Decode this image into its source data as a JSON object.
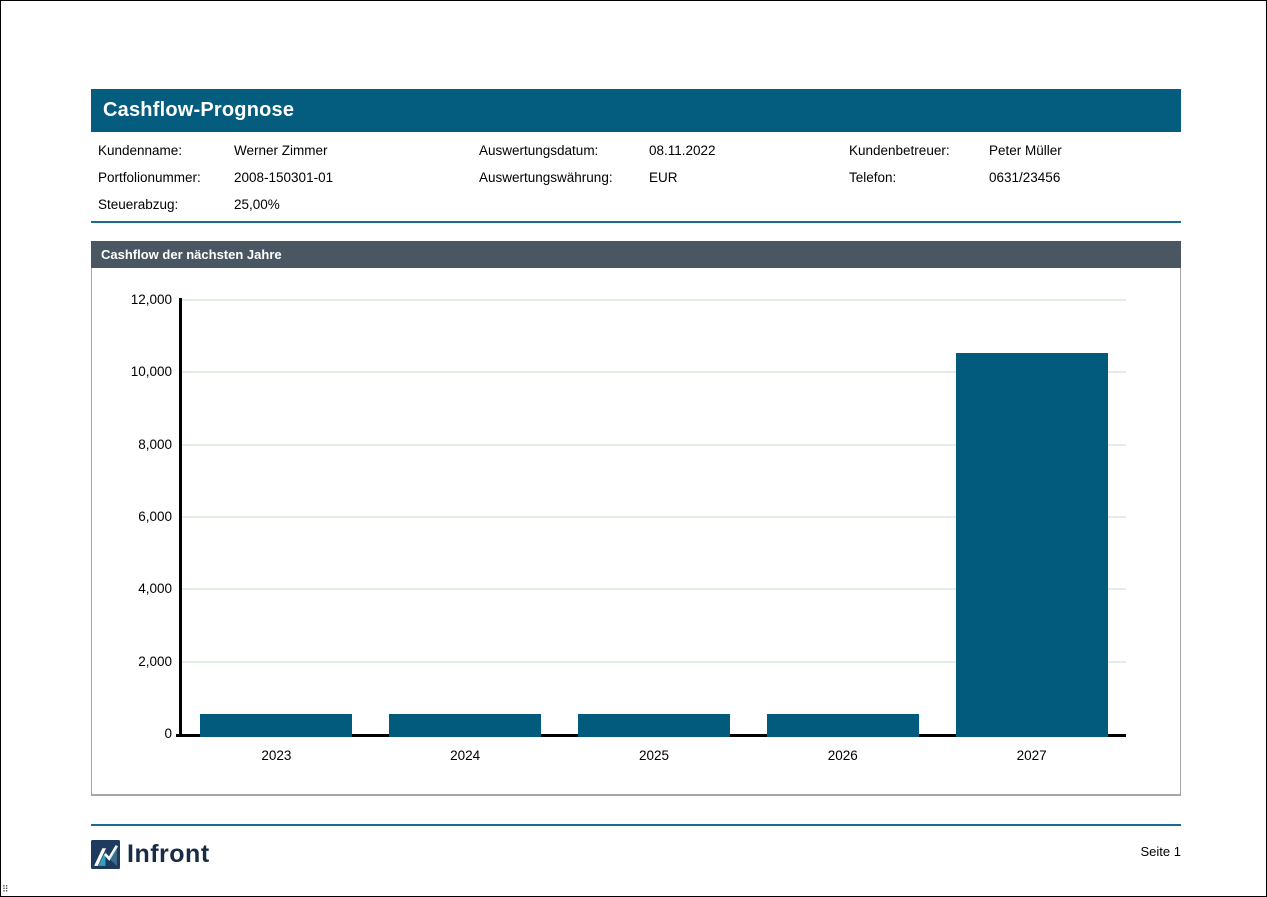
{
  "page": {
    "title": "Cashflow-Prognose",
    "page_number": "Seite 1",
    "brand": "Infront"
  },
  "info": {
    "fields": [
      {
        "label": "Kundenname:",
        "value": "Werner Zimmer"
      },
      {
        "label": "Auswertungsdatum:",
        "value": "08.11.2022"
      },
      {
        "label": "Kundenbetreuer:",
        "value": "Peter Müller"
      },
      {
        "label": "Portfolionummer:",
        "value": "2008-150301-01"
      },
      {
        "label": "Auswertungswährung:",
        "value": "EUR"
      },
      {
        "label": "Telefon:",
        "value": "0631/23456"
      },
      {
        "label": "Steuerabzug:",
        "value": "25,00%"
      }
    ]
  },
  "chart_data": {
    "type": "bar",
    "title": "Cashflow der nächsten Jahre",
    "categories": [
      "2023",
      "2024",
      "2025",
      "2026",
      "2027"
    ],
    "values": [
      625,
      625,
      625,
      625,
      10625
    ],
    "xlabel": "",
    "ylabel": "",
    "ylim": [
      0,
      12000
    ],
    "ytick_interval": 2000,
    "ytick_labels": [
      "0",
      "2,000",
      "4,000",
      "6,000",
      "8,000",
      "10,000",
      "12,000"
    ],
    "grid": true,
    "legend": false,
    "bar_color": "#025b7d",
    "gridline_color": "#e0efe2"
  },
  "colors": {
    "header_bar": "#045c7e",
    "section_header": "#4a5763",
    "divider": "#1a6d8c",
    "logo_navy": "#1e3a5c",
    "logo_teal": "#35a1bf"
  }
}
